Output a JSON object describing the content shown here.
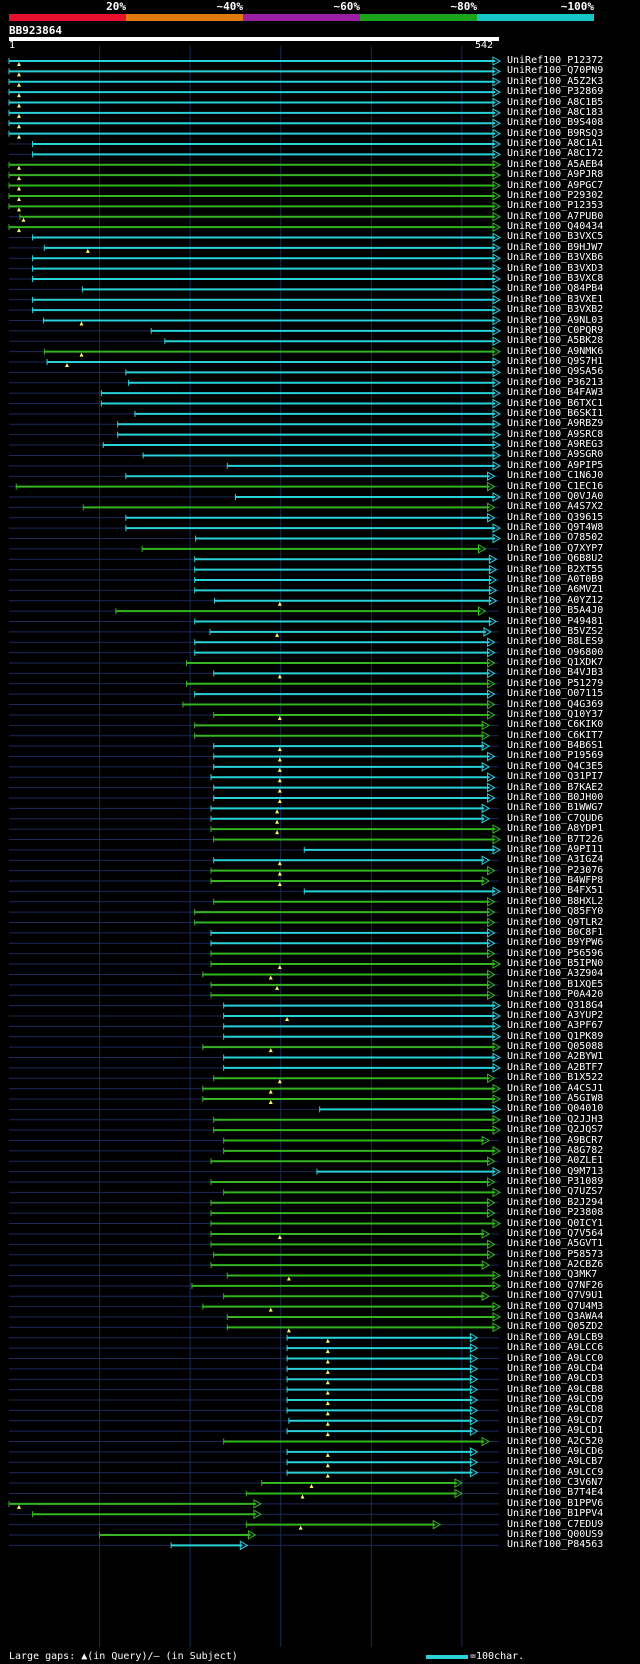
{
  "legend": {
    "labels": [
      "20%",
      "~40%",
      "~60%",
      "~80%",
      "~100%"
    ],
    "colors": [
      "#e8102c",
      "#e07a10",
      "#9a1fa3",
      "#1ba31b",
      "#17c6c6"
    ]
  },
  "query": {
    "name": "BB923864",
    "start_label": "1",
    "end_label": "542"
  },
  "query_length": 542,
  "colors": {
    "high": "#29d1d9",
    "mid": "#33b51f",
    "gap": "#f7f36b",
    "grid": "#1a2a5a",
    "background": "#000000"
  },
  "hits": [
    {
      "id": "UniRef100_P12372",
      "start": 1,
      "end": 542,
      "cls": "high",
      "gap": 12
    },
    {
      "id": "UniRef100_Q70PN9",
      "start": 1,
      "end": 542,
      "cls": "high",
      "gap": 12
    },
    {
      "id": "UniRef100_A5Z2K3",
      "start": 1,
      "end": 542,
      "cls": "high",
      "gap": 12
    },
    {
      "id": "UniRef100_P32869",
      "start": 1,
      "end": 542,
      "cls": "high",
      "gap": 12
    },
    {
      "id": "UniRef100_A8C1B5",
      "start": 1,
      "end": 542,
      "cls": "high",
      "gap": 12
    },
    {
      "id": "UniRef100_A8C183",
      "start": 1,
      "end": 542,
      "cls": "high",
      "gap": 12
    },
    {
      "id": "UniRef100_B9S408",
      "start": 1,
      "end": 542,
      "cls": "high",
      "gap": 12
    },
    {
      "id": "UniRef100_B9RSQ3",
      "start": 1,
      "end": 542,
      "cls": "high",
      "gap": 12
    },
    {
      "id": "UniRef100_A8C1A1",
      "start": 27,
      "end": 542,
      "cls": "high",
      "gap": 0
    },
    {
      "id": "UniRef100_A8C172",
      "start": 27,
      "end": 542,
      "cls": "high",
      "gap": 0
    },
    {
      "id": "UniRef100_A5AEB4",
      "start": 1,
      "end": 542,
      "cls": "mid",
      "gap": 12
    },
    {
      "id": "UniRef100_A9PJR8",
      "start": 1,
      "end": 542,
      "cls": "mid",
      "gap": 12
    },
    {
      "id": "UniRef100_A9PGC7",
      "start": 1,
      "end": 542,
      "cls": "mid",
      "gap": 12
    },
    {
      "id": "UniRef100_P29302",
      "start": 1,
      "end": 542,
      "cls": "mid",
      "gap": 12
    },
    {
      "id": "UniRef100_P12353",
      "start": 1,
      "end": 542,
      "cls": "mid",
      "gap": 12
    },
    {
      "id": "UniRef100_A7PUB0",
      "start": 13,
      "end": 542,
      "cls": "mid",
      "gap": 17
    },
    {
      "id": "UniRef100_Q40434",
      "start": 1,
      "end": 542,
      "cls": "mid",
      "gap": 12
    },
    {
      "id": "UniRef100_B3VXC5",
      "start": 27,
      "end": 542,
      "cls": "high",
      "gap": 0
    },
    {
      "id": "UniRef100_B9HJW7",
      "start": 40,
      "end": 542,
      "cls": "high",
      "gap": 88
    },
    {
      "id": "UniRef100_B3VXB6",
      "start": 27,
      "end": 542,
      "cls": "high",
      "gap": 0
    },
    {
      "id": "UniRef100_B3VXD3",
      "start": 27,
      "end": 542,
      "cls": "high",
      "gap": 0
    },
    {
      "id": "UniRef100_B3VXC8",
      "start": 27,
      "end": 542,
      "cls": "high",
      "gap": 0
    },
    {
      "id": "UniRef100_Q84PB4",
      "start": 82,
      "end": 542,
      "cls": "high",
      "gap": 0
    },
    {
      "id": "UniRef100_B3VXE1",
      "start": 27,
      "end": 542,
      "cls": "high",
      "gap": 0
    },
    {
      "id": "UniRef100_B3VXB2",
      "start": 27,
      "end": 542,
      "cls": "high",
      "gap": 0
    },
    {
      "id": "UniRef100_A9NL03",
      "start": 39,
      "end": 542,
      "cls": "high",
      "gap": 81
    },
    {
      "id": "UniRef100_C0PQR9",
      "start": 158,
      "end": 542,
      "cls": "high",
      "gap": 0
    },
    {
      "id": "UniRef100_A5BK28",
      "start": 173,
      "end": 542,
      "cls": "high",
      "gap": 0
    },
    {
      "id": "UniRef100_A9NMK6",
      "start": 40,
      "end": 542,
      "cls": "mid",
      "gap": 81
    },
    {
      "id": "UniRef100_Q9S7H1",
      "start": 43,
      "end": 542,
      "cls": "high",
      "gap": 65
    },
    {
      "id": "UniRef100_Q9SA56",
      "start": 130,
      "end": 542,
      "cls": "high",
      "gap": 0
    },
    {
      "id": "UniRef100_P36213",
      "start": 133,
      "end": 542,
      "cls": "high",
      "gap": 0
    },
    {
      "id": "UniRef100_B4FAW3",
      "start": 103,
      "end": 542,
      "cls": "high",
      "gap": 0
    },
    {
      "id": "UniRef100_B6TXC1",
      "start": 103,
      "end": 542,
      "cls": "high",
      "gap": 0
    },
    {
      "id": "UniRef100_B6SKI1",
      "start": 140,
      "end": 542,
      "cls": "high",
      "gap": 0
    },
    {
      "id": "UniRef100_A9RBZ9",
      "start": 121,
      "end": 542,
      "cls": "high",
      "gap": 0
    },
    {
      "id": "UniRef100_A9SRC8",
      "start": 121,
      "end": 542,
      "cls": "high",
      "gap": 0
    },
    {
      "id": "UniRef100_A9REG3",
      "start": 105,
      "end": 542,
      "cls": "high",
      "gap": 0
    },
    {
      "id": "UniRef100_A9SGR0",
      "start": 149,
      "end": 542,
      "cls": "high",
      "gap": 0
    },
    {
      "id": "UniRef100_A9PIP5",
      "start": 242,
      "end": 542,
      "cls": "high",
      "gap": 0
    },
    {
      "id": "UniRef100_C1N6J0",
      "start": 130,
      "end": 536,
      "cls": "high",
      "gap": 0
    },
    {
      "id": "UniRef100_C1EC16",
      "start": 9,
      "end": 536,
      "cls": "mid",
      "gap": 0
    },
    {
      "id": "UniRef100_Q0VJA0",
      "start": 251,
      "end": 542,
      "cls": "high",
      "gap": 0
    },
    {
      "id": "UniRef100_A4S7X2",
      "start": 83,
      "end": 536,
      "cls": "mid",
      "gap": 0
    },
    {
      "id": "UniRef100_Q39615",
      "start": 130,
      "end": 536,
      "cls": "high",
      "gap": 0
    },
    {
      "id": "UniRef100_Q9T4W8",
      "start": 130,
      "end": 542,
      "cls": "high",
      "gap": 0
    },
    {
      "id": "UniRef100_O78502",
      "start": 207,
      "end": 542,
      "cls": "high",
      "gap": 0
    },
    {
      "id": "UniRef100_Q7XYP7",
      "start": 148,
      "end": 526,
      "cls": "mid",
      "gap": 0
    },
    {
      "id": "UniRef100_Q6B8U2",
      "start": 206,
      "end": 538,
      "cls": "high",
      "gap": 0
    },
    {
      "id": "UniRef100_B2XT55",
      "start": 206,
      "end": 538,
      "cls": "high",
      "gap": 0
    },
    {
      "id": "UniRef100_A0T0B9",
      "start": 206,
      "end": 538,
      "cls": "high",
      "gap": 0
    },
    {
      "id": "UniRef100_A6MVZ1",
      "start": 206,
      "end": 538,
      "cls": "high",
      "gap": 0
    },
    {
      "id": "UniRef100_A0YZ12",
      "start": 228,
      "end": 538,
      "cls": "high",
      "gap": 300
    },
    {
      "id": "UniRef100_B5A4J0",
      "start": 119,
      "end": 526,
      "cls": "mid",
      "gap": 0
    },
    {
      "id": "UniRef100_P49481",
      "start": 206,
      "end": 538,
      "cls": "high",
      "gap": 0
    },
    {
      "id": "UniRef100_B5VZS2",
      "start": 223,
      "end": 532,
      "cls": "high",
      "gap": 297
    },
    {
      "id": "UniRef100_B8LES9",
      "start": 206,
      "end": 536,
      "cls": "high",
      "gap": 0
    },
    {
      "id": "UniRef100_O96800",
      "start": 206,
      "end": 536,
      "cls": "high",
      "gap": 0
    },
    {
      "id": "UniRef100_Q1XDK7",
      "start": 197,
      "end": 536,
      "cls": "mid",
      "gap": 0
    },
    {
      "id": "UniRef100_B4VJB3",
      "start": 227,
      "end": 536,
      "cls": "high",
      "gap": 300
    },
    {
      "id": "UniRef100_P51279",
      "start": 197,
      "end": 536,
      "cls": "mid",
      "gap": 0
    },
    {
      "id": "UniRef100_O07115",
      "start": 206,
      "end": 536,
      "cls": "high",
      "gap": 0
    },
    {
      "id": "UniRef100_Q4G369",
      "start": 193,
      "end": 536,
      "cls": "mid",
      "gap": 0
    },
    {
      "id": "UniRef100_Q10Y37",
      "start": 227,
      "end": 536,
      "cls": "mid",
      "gap": 300
    },
    {
      "id": "UniRef100_C6KIK0",
      "start": 206,
      "end": 530,
      "cls": "mid",
      "gap": 0
    },
    {
      "id": "UniRef100_C6KIT7",
      "start": 206,
      "end": 530,
      "cls": "mid",
      "gap": 0
    },
    {
      "id": "UniRef100_B4B6S1",
      "start": 227,
      "end": 530,
      "cls": "high",
      "gap": 300
    },
    {
      "id": "UniRef100_P19569",
      "start": 227,
      "end": 536,
      "cls": "high",
      "gap": 300
    },
    {
      "id": "UniRef100_Q4C3E5",
      "start": 227,
      "end": 530,
      "cls": "high",
      "gap": 300
    },
    {
      "id": "UniRef100_Q31PI7",
      "start": 224,
      "end": 536,
      "cls": "high",
      "gap": 300
    },
    {
      "id": "UniRef100_B7KAE2",
      "start": 227,
      "end": 536,
      "cls": "high",
      "gap": 300
    },
    {
      "id": "UniRef100_B0JH00",
      "start": 227,
      "end": 536,
      "cls": "high",
      "gap": 300
    },
    {
      "id": "UniRef100_B1WWG7",
      "start": 224,
      "end": 530,
      "cls": "high",
      "gap": 297
    },
    {
      "id": "UniRef100_C7QUD6",
      "start": 224,
      "end": 530,
      "cls": "high",
      "gap": 297
    },
    {
      "id": "UniRef100_A8YDP1",
      "start": 224,
      "end": 542,
      "cls": "mid",
      "gap": 297
    },
    {
      "id": "UniRef100_B7T226",
      "start": 227,
      "end": 542,
      "cls": "mid",
      "gap": 0
    },
    {
      "id": "UniRef100_A9PI11",
      "start": 327,
      "end": 542,
      "cls": "high",
      "gap": 0
    },
    {
      "id": "UniRef100_A3IGZ4",
      "start": 227,
      "end": 530,
      "cls": "high",
      "gap": 300
    },
    {
      "id": "UniRef100_P23076",
      "start": 224,
      "end": 536,
      "cls": "mid",
      "gap": 300
    },
    {
      "id": "UniRef100_B4WFP8",
      "start": 224,
      "end": 530,
      "cls": "mid",
      "gap": 300
    },
    {
      "id": "UniRef100_B4FX51",
      "start": 327,
      "end": 542,
      "cls": "high",
      "gap": 0
    },
    {
      "id": "UniRef100_B8HXL2",
      "start": 227,
      "end": 536,
      "cls": "mid",
      "gap": 0
    },
    {
      "id": "UniRef100_Q85FY0",
      "start": 206,
      "end": 536,
      "cls": "mid",
      "gap": 0
    },
    {
      "id": "UniRef100_Q9TLR2",
      "start": 206,
      "end": 536,
      "cls": "mid",
      "gap": 0
    },
    {
      "id": "UniRef100_B0C8F1",
      "start": 224,
      "end": 536,
      "cls": "high",
      "gap": 0
    },
    {
      "id": "UniRef100_B9YPW6",
      "start": 224,
      "end": 536,
      "cls": "high",
      "gap": 0
    },
    {
      "id": "UniRef100_P56596",
      "start": 224,
      "end": 536,
      "cls": "mid",
      "gap": 0
    },
    {
      "id": "UniRef100_B5IPN0",
      "start": 224,
      "end": 542,
      "cls": "mid",
      "gap": 300
    },
    {
      "id": "UniRef100_A3Z904",
      "start": 215,
      "end": 536,
      "cls": "mid",
      "gap": 290
    },
    {
      "id": "UniRef100_B1XQE5",
      "start": 224,
      "end": 536,
      "cls": "mid",
      "gap": 297
    },
    {
      "id": "UniRef100_P0A420",
      "start": 224,
      "end": 536,
      "cls": "mid",
      "gap": 0
    },
    {
      "id": "UniRef100_Q318G4",
      "start": 238,
      "end": 542,
      "cls": "high",
      "gap": 0
    },
    {
      "id": "UniRef100_A3YUP2",
      "start": 238,
      "end": 542,
      "cls": "high",
      "gap": 308
    },
    {
      "id": "UniRef100_A3PF67",
      "start": 238,
      "end": 542,
      "cls": "high",
      "gap": 0
    },
    {
      "id": "UniRef100_Q1PK89",
      "start": 238,
      "end": 542,
      "cls": "high",
      "gap": 0
    },
    {
      "id": "UniRef100_Q05088",
      "start": 215,
      "end": 542,
      "cls": "mid",
      "gap": 290
    },
    {
      "id": "UniRef100_A2BYW1",
      "start": 238,
      "end": 542,
      "cls": "high",
      "gap": 0
    },
    {
      "id": "UniRef100_A2BTF7",
      "start": 238,
      "end": 542,
      "cls": "high",
      "gap": 0
    },
    {
      "id": "UniRef100_B1X522",
      "start": 227,
      "end": 536,
      "cls": "mid",
      "gap": 300
    },
    {
      "id": "UniRef100_A4CSJ1",
      "start": 215,
      "end": 542,
      "cls": "mid",
      "gap": 290
    },
    {
      "id": "UniRef100_A5GIW8",
      "start": 215,
      "end": 542,
      "cls": "mid",
      "gap": 290
    },
    {
      "id": "UniRef100_Q04010",
      "start": 344,
      "end": 542,
      "cls": "high",
      "gap": 0
    },
    {
      "id": "UniRef100_Q2JJH3",
      "start": 227,
      "end": 542,
      "cls": "mid",
      "gap": 0
    },
    {
      "id": "UniRef100_Q2JQS7",
      "start": 227,
      "end": 542,
      "cls": "mid",
      "gap": 0
    },
    {
      "id": "UniRef100_A9BCR7",
      "start": 238,
      "end": 530,
      "cls": "mid",
      "gap": 0
    },
    {
      "id": "UniRef100_A8G782",
      "start": 238,
      "end": 542,
      "cls": "mid",
      "gap": 0
    },
    {
      "id": "UniRef100_A0ZLE1",
      "start": 224,
      "end": 536,
      "cls": "mid",
      "gap": 0
    },
    {
      "id": "UniRef100_Q9M713",
      "start": 341,
      "end": 542,
      "cls": "high",
      "gap": 0
    },
    {
      "id": "UniRef100_P31089",
      "start": 224,
      "end": 536,
      "cls": "mid",
      "gap": 0
    },
    {
      "id": "UniRef100_Q7UZS7",
      "start": 238,
      "end": 542,
      "cls": "mid",
      "gap": 0
    },
    {
      "id": "UniRef100_B2J294",
      "start": 224,
      "end": 536,
      "cls": "mid",
      "gap": 0
    },
    {
      "id": "UniRef100_P23808",
      "start": 224,
      "end": 536,
      "cls": "mid",
      "gap": 0
    },
    {
      "id": "UniRef100_Q0ICY1",
      "start": 224,
      "end": 542,
      "cls": "mid",
      "gap": 0
    },
    {
      "id": "UniRef100_Q7V564",
      "start": 224,
      "end": 530,
      "cls": "mid",
      "gap": 300
    },
    {
      "id": "UniRef100_A5GVT1",
      "start": 224,
      "end": 536,
      "cls": "mid",
      "gap": 0
    },
    {
      "id": "UniRef100_P58573",
      "start": 227,
      "end": 536,
      "cls": "mid",
      "gap": 0
    },
    {
      "id": "UniRef100_A2CBZ6",
      "start": 224,
      "end": 530,
      "cls": "mid",
      "gap": 0
    },
    {
      "id": "UniRef100_Q3MK7",
      "start": 242,
      "end": 542,
      "cls": "mid",
      "gap": 310
    },
    {
      "id": "UniRef100_Q7NF26",
      "start": 203,
      "end": 542,
      "cls": "mid",
      "gap": 0
    },
    {
      "id": "UniRef100_Q7V9U1",
      "start": 238,
      "end": 530,
      "cls": "mid",
      "gap": 0
    },
    {
      "id": "UniRef100_Q7U4M3",
      "start": 215,
      "end": 542,
      "cls": "mid",
      "gap": 290
    },
    {
      "id": "UniRef100_Q3AWA4",
      "start": 242,
      "end": 542,
      "cls": "mid",
      "gap": 0
    },
    {
      "id": "UniRef100_Q05ZD2",
      "start": 242,
      "end": 542,
      "cls": "mid",
      "gap": 310
    },
    {
      "id": "UniRef100_A9LCB9",
      "start": 308,
      "end": 517,
      "cls": "high",
      "gap": 353
    },
    {
      "id": "UniRef100_A9LCC6",
      "start": 308,
      "end": 517,
      "cls": "high",
      "gap": 353
    },
    {
      "id": "UniRef100_A9LCC0",
      "start": 308,
      "end": 517,
      "cls": "high",
      "gap": 353
    },
    {
      "id": "UniRef100_A9LCD4",
      "start": 308,
      "end": 517,
      "cls": "high",
      "gap": 353
    },
    {
      "id": "UniRef100_A9LCD3",
      "start": 308,
      "end": 517,
      "cls": "high",
      "gap": 353
    },
    {
      "id": "UniRef100_A9LCB8",
      "start": 308,
      "end": 517,
      "cls": "high",
      "gap": 353
    },
    {
      "id": "UniRef100_A9LCD9",
      "start": 308,
      "end": 517,
      "cls": "high",
      "gap": 353
    },
    {
      "id": "UniRef100_A9LCD8",
      "start": 308,
      "end": 517,
      "cls": "high",
      "gap": 353
    },
    {
      "id": "UniRef100_A9LCD7",
      "start": 310,
      "end": 517,
      "cls": "high",
      "gap": 353
    },
    {
      "id": "UniRef100_A9LCD1",
      "start": 308,
      "end": 517,
      "cls": "high",
      "gap": 353
    },
    {
      "id": "UniRef100_A2C520",
      "start": 238,
      "end": 530,
      "cls": "mid",
      "gap": 0
    },
    {
      "id": "UniRef100_A9LCD6",
      "start": 308,
      "end": 517,
      "cls": "high",
      "gap": 353
    },
    {
      "id": "UniRef100_A9LCB7",
      "start": 308,
      "end": 517,
      "cls": "high",
      "gap": 353
    },
    {
      "id": "UniRef100_A9LCC9",
      "start": 308,
      "end": 517,
      "cls": "high",
      "gap": 353
    },
    {
      "id": "UniRef100_C3V6N7",
      "start": 280,
      "end": 500,
      "cls": "mid",
      "gap": 335
    },
    {
      "id": "UniRef100_B7T4E4",
      "start": 263,
      "end": 500,
      "cls": "mid",
      "gap": 325
    },
    {
      "id": "UniRef100_B1PPV6",
      "start": 1,
      "end": 278,
      "cls": "mid",
      "gap": 12
    },
    {
      "id": "UniRef100_B1PPV4",
      "start": 27,
      "end": 278,
      "cls": "mid",
      "gap": 0
    },
    {
      "id": "UniRef100_C7EDU9",
      "start": 263,
      "end": 476,
      "cls": "mid",
      "gap": 323
    },
    {
      "id": "UniRef100_Q00US9",
      "start": 101,
      "end": 272,
      "cls": "mid",
      "gap": 0
    },
    {
      "id": "UniRef100_P84563",
      "start": 180,
      "end": 263,
      "cls": "high",
      "gap": 0
    }
  ],
  "footer": {
    "left": "Large gaps: ▲(in Query)/– (in Subject)",
    "right": "=100char."
  }
}
